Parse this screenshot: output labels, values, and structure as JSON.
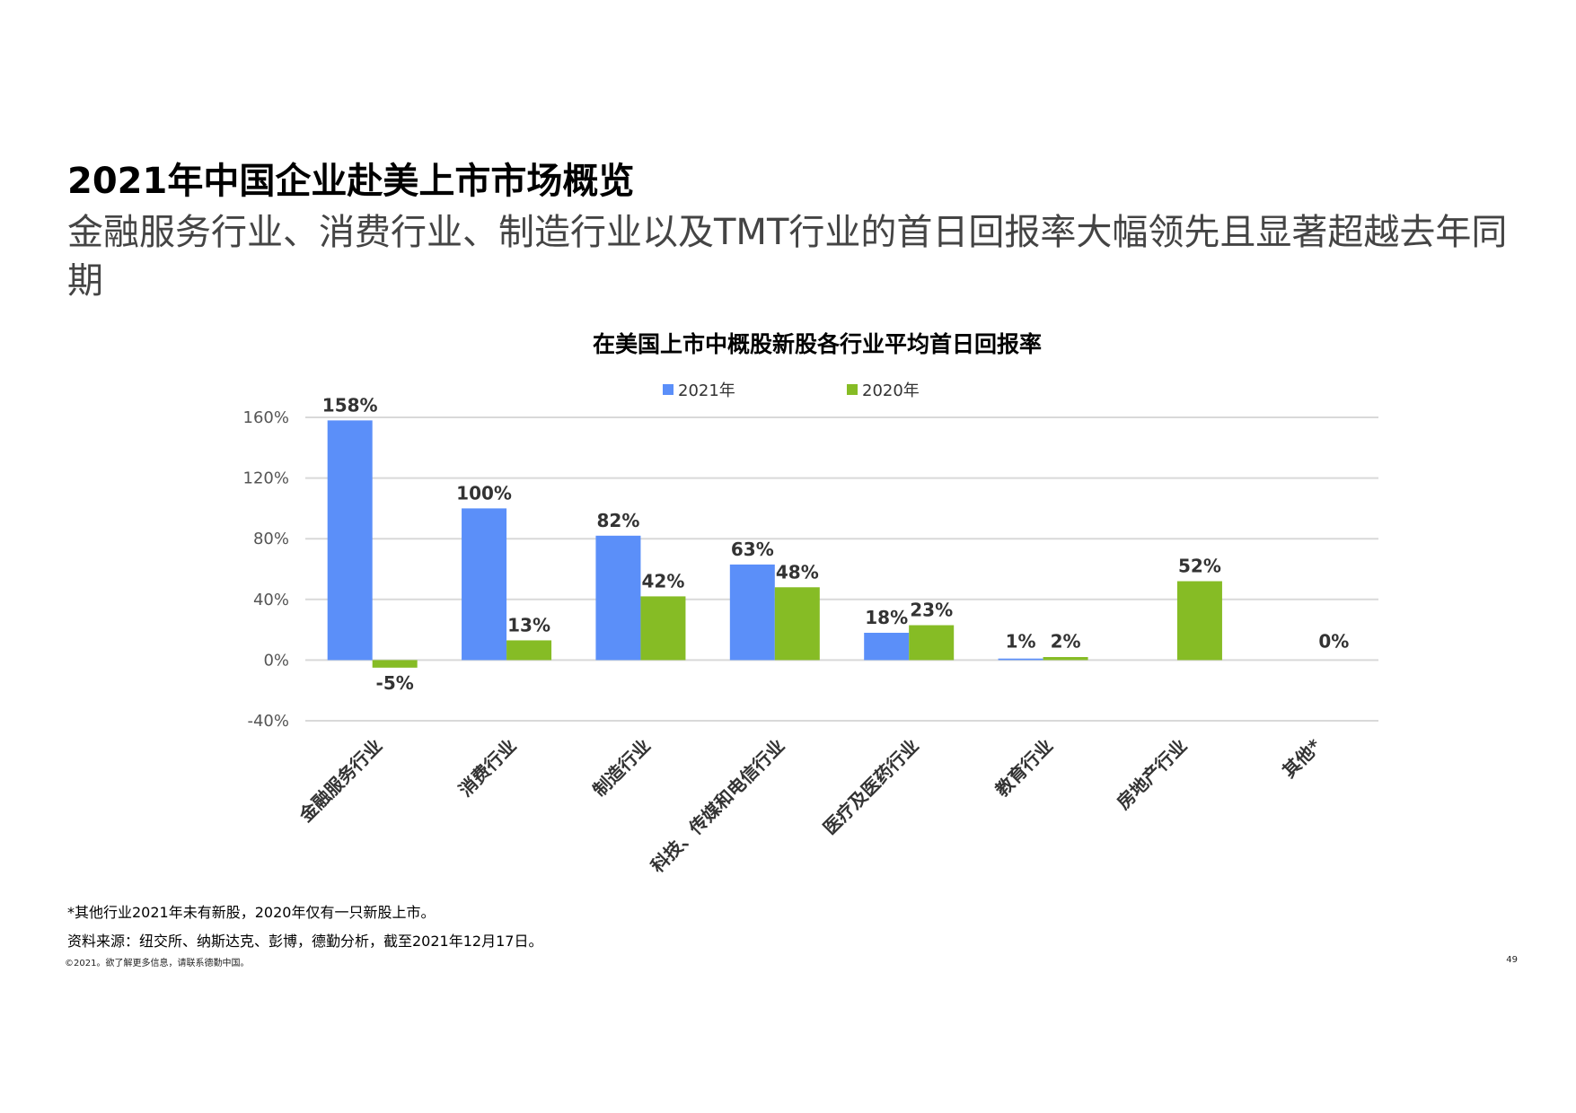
{
  "page": {
    "title": "2021年中国企业赴美上市市场概览",
    "subtitle": "金融服务行业、消费行业、制造行业以及TMT行业的首日回报率大幅领先且显著超越去年同期",
    "footnote_1": "*其他行业2021年未有新股，2020年仅有一只新股上市。",
    "footnote_2": "资料来源：纽交所、纳斯达克、彭博，德勤分析，截至2021年12月17日。",
    "copyright": "©2021。欲了解更多信息，请联系德勤中国。",
    "page_number": "49"
  },
  "chart_data": {
    "type": "bar",
    "title": "在美国上市中概股新股各行业平均首日回报率",
    "categories": [
      "金融服务行业",
      "消费行业",
      "制造行业",
      "科技、传媒和电信行业",
      "医疗及医药行业",
      "教育行业",
      "房地产行业",
      "其他*"
    ],
    "series": [
      {
        "name": "2021年",
        "color": "#5B8FF9",
        "values": [
          158,
          100,
          82,
          63,
          18,
          1,
          null,
          null
        ],
        "labels": [
          "158%",
          "100%",
          "82%",
          "63%",
          "18%",
          "1%",
          "",
          ""
        ]
      },
      {
        "name": "2020年",
        "color": "#86BC25",
        "values": [
          -5,
          13,
          42,
          48,
          23,
          2,
          52,
          0
        ],
        "labels": [
          "-5%",
          "13%",
          "42%",
          "48%",
          "23%",
          "2%",
          "52%",
          "0%"
        ]
      }
    ],
    "yticks": [
      "160%",
      "120%",
      "80%",
      "40%",
      "0%",
      "-40%"
    ],
    "ytick_values": [
      160,
      120,
      80,
      40,
      0,
      -40
    ],
    "ylim": [
      -40,
      160
    ],
    "grid": true,
    "legend_position": "top"
  }
}
